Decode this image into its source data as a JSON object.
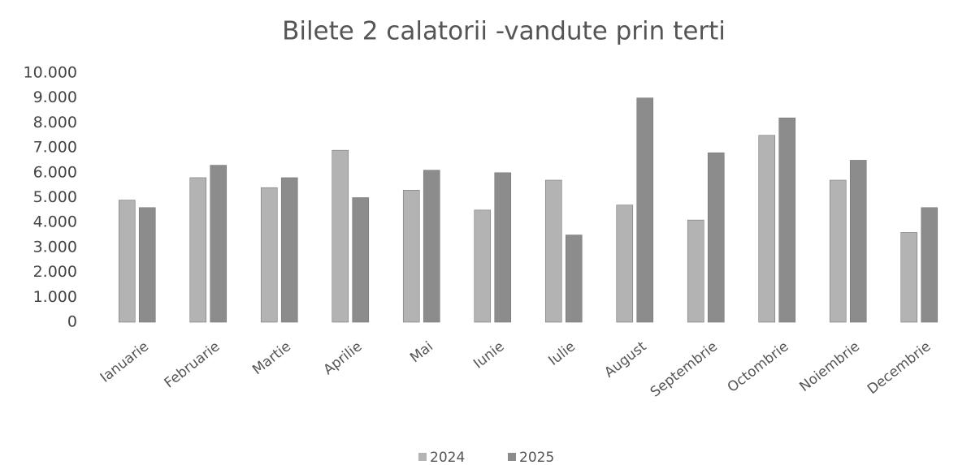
{
  "chart_data": {
    "type": "bar",
    "title": "Bilete 2 calatorii -vandute prin terti",
    "categories": [
      "Ianuarie",
      "Februarie",
      "Martie",
      "Aprilie",
      "Mai",
      "Iunie",
      "Iulie",
      "August",
      "Septembrie",
      "Octombrie",
      "Noiembrie",
      "Decembrie"
    ],
    "series": [
      {
        "name": "2024",
        "color": "#b3b3b3",
        "values": [
          4900,
          5800,
          5400,
          6900,
          5300,
          4500,
          5700,
          4700,
          4100,
          7500,
          5700,
          3600
        ]
      },
      {
        "name": "2025",
        "color": "#8c8c8c",
        "values": [
          4600,
          6300,
          5800,
          5000,
          6100,
          6000,
          3500,
          9000,
          6800,
          8200,
          6500,
          4600
        ]
      }
    ],
    "ylim": [
      0,
      10000
    ],
    "yticks": [
      0,
      {
        "value": 1000,
        "label": "1.000"
      },
      {
        "value": 2000,
        "label": "2.000"
      },
      {
        "value": 3000,
        "label": "3.000"
      },
      {
        "value": 4000,
        "label": "4.000"
      },
      {
        "value": 5000,
        "label": "5.000"
      },
      {
        "value": 6000,
        "label": "6.000"
      },
      {
        "value": 7000,
        "label": "7.000"
      },
      {
        "value": 8000,
        "label": "8.000"
      },
      {
        "value": 9000,
        "label": "9.000"
      },
      {
        "value": 10000,
        "label": "10.000"
      }
    ],
    "grid": false,
    "legend": "bottom"
  }
}
